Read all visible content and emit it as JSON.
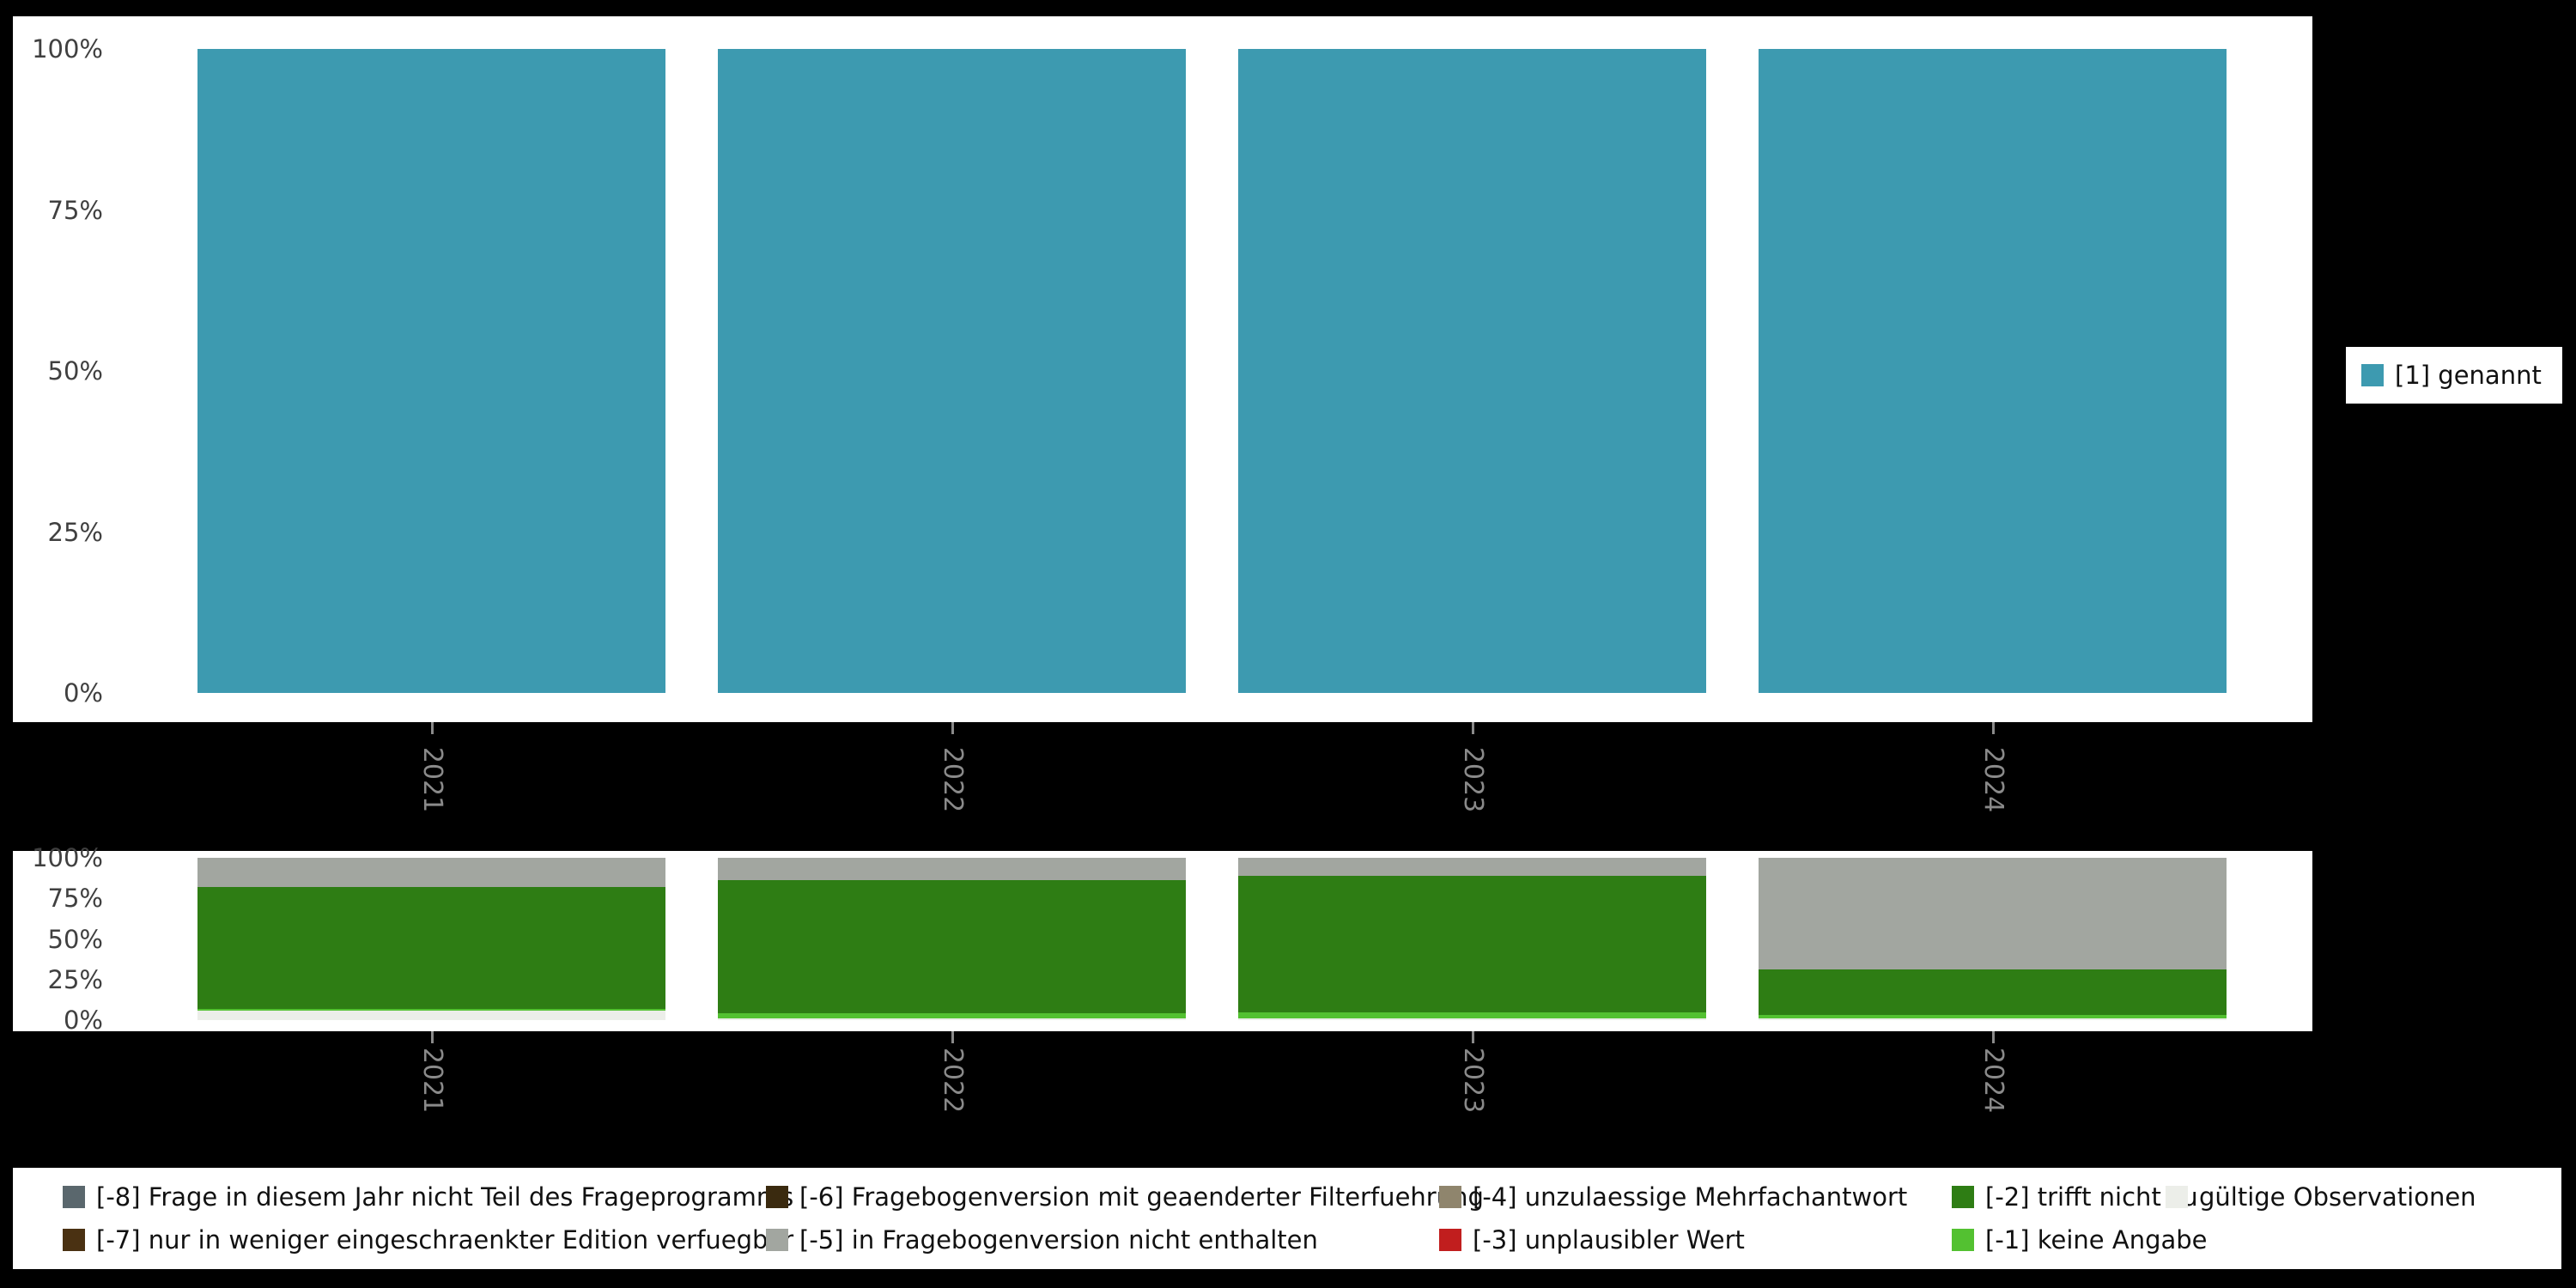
{
  "years": [
    "2021",
    "2022",
    "2023",
    "2024"
  ],
  "y_ticks": [
    "100%",
    "75%",
    "50%",
    "25%",
    "0%"
  ],
  "colors": {
    "background": "#000000",
    "panel": "#ffffff",
    "axis_text": "#404040",
    "year_text": "#8a8a8a"
  },
  "top_legend": {
    "label": "[1] genannt"
  },
  "chart_data": [
    {
      "type": "bar",
      "title": "",
      "xlabel": "",
      "ylabel": "",
      "ylim": [
        0,
        100
      ],
      "y_tick_labels": [
        "0%",
        "25%",
        "50%",
        "75%",
        "100%"
      ],
      "categories": [
        "2021",
        "2022",
        "2023",
        "2024"
      ],
      "series": [
        {
          "name": "[1] genannt",
          "color": "#3d9ab0",
          "values": [
            100,
            100,
            100,
            100
          ]
        }
      ],
      "legend_position": "right"
    },
    {
      "type": "stacked-bar",
      "title": "",
      "xlabel": "",
      "ylabel": "",
      "ylim": [
        0,
        100
      ],
      "y_tick_labels": [
        "0%",
        "25%",
        "50%",
        "75%",
        "100%"
      ],
      "categories": [
        "2021",
        "2022",
        "2023",
        "2024"
      ],
      "series": [
        {
          "name": "gültige Observationen",
          "color": "#eceee9",
          "values": [
            6,
            1,
            1,
            1
          ]
        },
        {
          "name": "[-1] keine Angabe",
          "color": "#53c131",
          "values": [
            1,
            3,
            4,
            2
          ]
        },
        {
          "name": "[-2] trifft nicht zu",
          "color": "#2e7d14",
          "values": [
            75,
            82,
            84,
            28
          ]
        },
        {
          "name": "[-3] unplausibler Wert",
          "color": "#c11e1e",
          "values": [
            0,
            0,
            0,
            0
          ]
        },
        {
          "name": "[-4] unzulaessige Mehrfachantwort",
          "color": "#8f856d",
          "values": [
            0,
            0,
            0,
            0
          ]
        },
        {
          "name": "[-5] in Fragebogenversion nicht enthalten",
          "color": "#a2a6a0",
          "values": [
            18,
            14,
            11,
            69
          ]
        },
        {
          "name": "[-6] Fragebogenversion mit geaenderter Filterfuehrung",
          "color": "#3a2a0f",
          "values": [
            0,
            0,
            0,
            0
          ]
        },
        {
          "name": "[-7] nur in weniger eingeschraenkter Edition verfuegbar",
          "color": "#4a3112",
          "values": [
            0,
            0,
            0,
            0
          ]
        },
        {
          "name": "[-8] Frage in diesem Jahr nicht Teil des Frageprogramms",
          "color": "#5a676d",
          "values": [
            0,
            0,
            0,
            0
          ]
        }
      ],
      "legend_position": "bottom",
      "legend_layout": [
        [
          "[-8] Frage in diesem Jahr nicht Teil des Frageprogramms",
          "[-6] Fragebogenversion mit geaenderter Filterfuehrung",
          "[-4] unzulaessige Mehrfachantwort",
          "[-2] trifft nicht zu",
          "gültige Observationen"
        ],
        [
          "[-7] nur in weniger eingeschraenkter Edition verfuegbar",
          "[-5] in Fragebogenversion nicht enthalten",
          "[-3] unplausibler Wert",
          "[-1] keine Angabe"
        ]
      ]
    }
  ]
}
